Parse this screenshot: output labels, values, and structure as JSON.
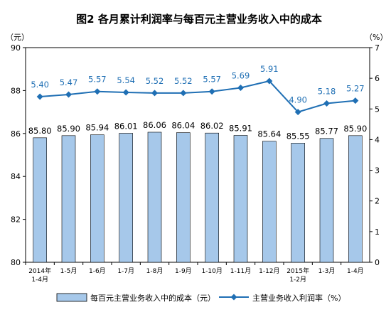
{
  "chart_data": {
    "type": "bar+line",
    "title": "图2  各月累计利润率与每百元主营业务收入中的成本",
    "left_unit": "（元）",
    "right_unit": "（%）",
    "categories": [
      [
        "2014年",
        "1-4月"
      ],
      [
        "1-5月"
      ],
      [
        "1-6月"
      ],
      [
        "1-7月"
      ],
      [
        "1-8月"
      ],
      [
        "1-9月"
      ],
      [
        "1-10月"
      ],
      [
        "1-11月"
      ],
      [
        "1-12月"
      ],
      [
        "2015年",
        "1-2月"
      ],
      [
        "1-3月"
      ],
      [
        "1-4月"
      ]
    ],
    "series": [
      {
        "name": "每百元主营业务收入中的成本（元）",
        "type": "bar",
        "axis": "left",
        "color": "#a6c8ea",
        "values": [
          85.8,
          85.9,
          85.94,
          86.01,
          86.06,
          86.04,
          86.02,
          85.91,
          85.64,
          85.55,
          85.77,
          85.9
        ],
        "labels": [
          "85.80",
          "85.90",
          "85.94",
          "86.01",
          "86.06",
          "86.04",
          "86.02",
          "85.91",
          "85.64",
          "85.55",
          "85.77",
          "85.90"
        ]
      },
      {
        "name": "主营业务收入利润率（%）",
        "type": "line",
        "axis": "right",
        "color": "#1f6fb4",
        "values": [
          5.4,
          5.47,
          5.57,
          5.54,
          5.52,
          5.52,
          5.57,
          5.69,
          5.91,
          4.9,
          5.18,
          5.27
        ],
        "labels": [
          "5.40",
          "5.47",
          "5.57",
          "5.54",
          "5.52",
          "5.52",
          "5.57",
          "5.69",
          "5.91",
          "4.90",
          "5.18",
          "5.27"
        ]
      }
    ],
    "left_axis": {
      "min": 80,
      "max": 90,
      "ticks": [
        "80",
        "82",
        "84",
        "86",
        "88",
        "90"
      ]
    },
    "right_axis": {
      "min": 0,
      "max": 7,
      "ticks": [
        "0",
        "1",
        "2",
        "3",
        "4",
        "5",
        "6",
        "7"
      ]
    },
    "grid": false,
    "legend_position": "bottom"
  }
}
